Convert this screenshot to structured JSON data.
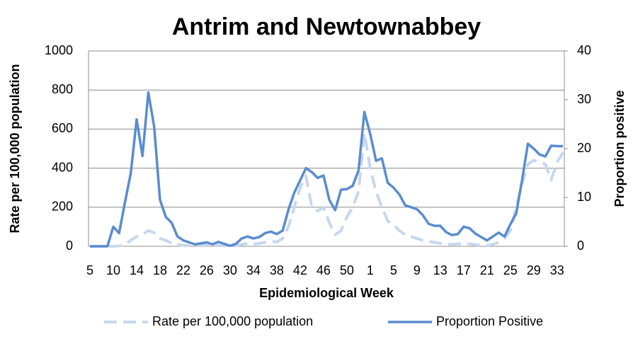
{
  "chart_data": {
    "type": "line",
    "title": "Antrim and Newtownabbey",
    "x_label": "Epidemiological Week",
    "y_label": "Rate per 100,000 population",
    "y2_label": "Proportion positive",
    "categories": [
      "5",
      null,
      null,
      null,
      "10",
      null,
      null,
      null,
      "14",
      null,
      null,
      null,
      "18",
      null,
      null,
      null,
      "22",
      null,
      null,
      null,
      "26",
      null,
      null,
      null,
      "30",
      null,
      null,
      null,
      "34",
      null,
      null,
      null,
      "38",
      null,
      null,
      null,
      "42",
      null,
      null,
      null,
      "46",
      null,
      null,
      null,
      "50",
      null,
      null,
      null,
      "1",
      null,
      null,
      null,
      "5",
      null,
      null,
      null,
      "9",
      null,
      null,
      null,
      "13",
      null,
      null,
      null,
      "17",
      null,
      null,
      null,
      "21",
      null,
      null,
      null,
      "25",
      null,
      null,
      null,
      "29",
      null,
      null,
      null,
      "33",
      null
    ],
    "ylim": [
      0,
      1000
    ],
    "yticks": [
      0,
      200,
      400,
      600,
      800,
      1000
    ],
    "y2lim": [
      0,
      40
    ],
    "y2ticks": [
      0,
      10,
      20,
      30,
      40
    ],
    "grid": true,
    "legend": "bottom",
    "series": [
      {
        "name": "Rate per 100,000 population",
        "color": "#c6d7ee",
        "dashed": true,
        "axis": "y",
        "values": [
          0,
          0,
          0,
          0,
          0,
          2,
          10,
          30,
          50,
          60,
          80,
          70,
          40,
          30,
          15,
          8,
          5,
          4,
          3,
          3,
          4,
          3,
          4,
          3,
          2,
          4,
          10,
          15,
          12,
          14,
          20,
          25,
          22,
          40,
          100,
          200,
          300,
          360,
          200,
          180,
          200,
          120,
          60,
          80,
          150,
          200,
          280,
          580,
          400,
          280,
          200,
          130,
          110,
          80,
          60,
          50,
          40,
          30,
          25,
          20,
          15,
          10,
          10,
          12,
          15,
          12,
          8,
          5,
          4,
          10,
          20,
          40,
          80,
          200,
          320,
          420,
          440,
          430,
          420,
          340,
          430,
          480
        ]
      },
      {
        "name": "Proportion Positive",
        "color": "#5a8ccf",
        "dashed": false,
        "axis": "y2",
        "values": [
          0,
          0,
          0,
          0,
          4,
          2.7,
          9,
          15,
          26,
          18.5,
          31.5,
          24.5,
          9.5,
          6,
          4.8,
          2,
          1.2,
          0.8,
          0.4,
          0.6,
          0.8,
          0.4,
          0.9,
          0.5,
          0.1,
          0.5,
          1.6,
          2,
          1.6,
          1.9,
          2.7,
          3,
          2.5,
          3.2,
          7.5,
          11,
          13.5,
          16,
          15.2,
          14,
          14.5,
          9.5,
          7.4,
          11.6,
          11.7,
          12.4,
          15.5,
          27.5,
          23,
          17.5,
          18,
          13,
          12,
          10.6,
          8.4,
          8,
          7.6,
          6.4,
          4.6,
          4.2,
          4.2,
          2.9,
          2.3,
          2.5,
          4,
          3.7,
          2.6,
          1.9,
          1.2,
          2,
          2.8,
          2,
          4.5,
          6.7,
          13.5,
          21,
          20,
          18.8,
          18.4,
          20.6,
          20.5,
          20.5
        ]
      }
    ]
  }
}
